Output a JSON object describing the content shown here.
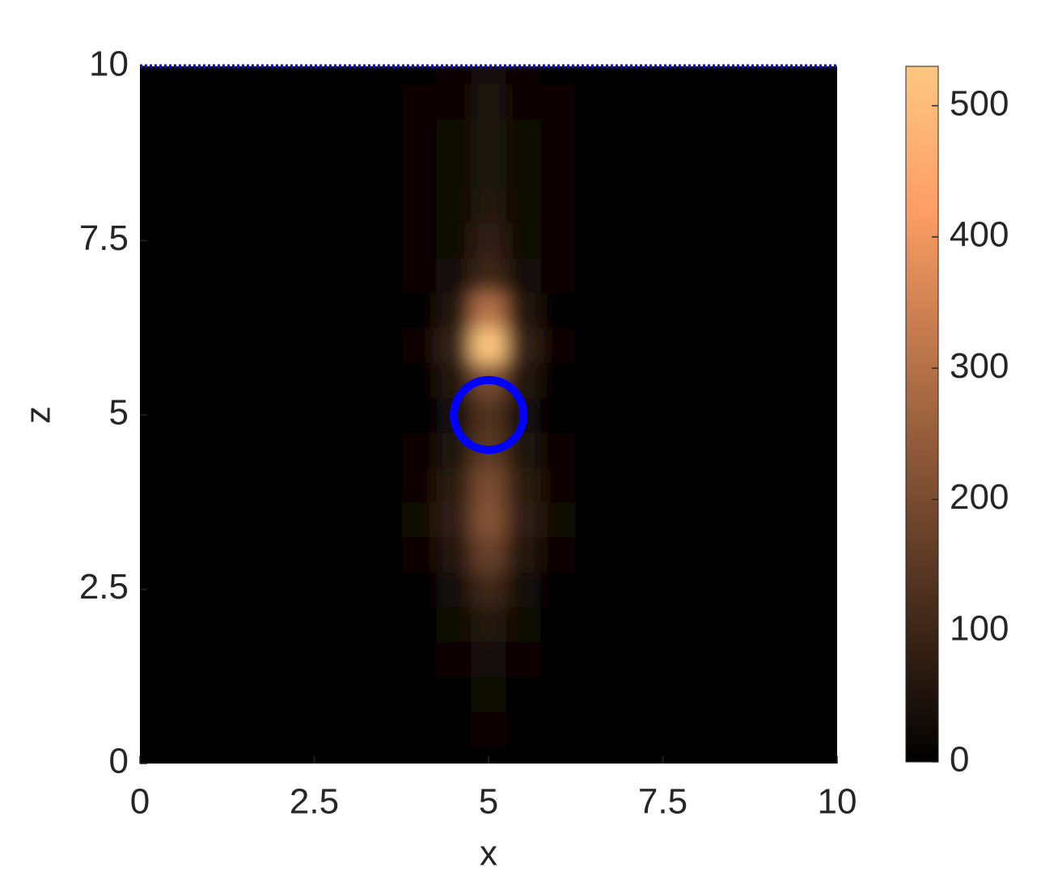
{
  "chart_data": {
    "type": "heatmap",
    "xlabel": "x",
    "ylabel": "z",
    "x": [
      0,
      0.5,
      1,
      1.5,
      2,
      2.5,
      3,
      3.5,
      4,
      4.5,
      5,
      5.5,
      6,
      6.5,
      7,
      7.5,
      8,
      8.5,
      9,
      9.5,
      10
    ],
    "z": [
      0,
      0.5,
      1,
      1.5,
      2,
      2.5,
      3,
      3.5,
      4,
      4.5,
      5,
      5.5,
      6,
      6.5,
      7,
      7.5,
      8,
      8.5,
      9,
      9.5,
      10
    ],
    "values": [
      [
        0,
        0,
        0,
        0,
        0,
        0,
        0,
        0,
        0,
        3,
        8,
        3,
        0,
        0,
        0,
        0,
        0,
        0,
        0,
        0,
        0
      ],
      [
        0,
        0,
        0,
        0,
        0,
        0,
        0,
        0,
        2,
        6,
        15,
        6,
        2,
        0,
        0,
        0,
        0,
        0,
        0,
        0,
        0
      ],
      [
        0,
        0,
        0,
        0,
        0,
        0,
        0,
        0,
        3,
        10,
        25,
        10,
        3,
        0,
        0,
        0,
        0,
        0,
        0,
        0,
        0
      ],
      [
        0,
        0,
        0,
        0,
        0,
        0,
        0,
        0,
        5,
        15,
        40,
        15,
        5,
        0,
        0,
        0,
        0,
        0,
        0,
        0,
        0
      ],
      [
        0,
        0,
        0,
        0,
        0,
        0,
        0,
        0,
        5,
        20,
        60,
        20,
        5,
        0,
        0,
        0,
        0,
        0,
        0,
        0,
        0
      ],
      [
        0,
        0,
        0,
        0,
        0,
        0,
        0,
        2,
        10,
        35,
        100,
        35,
        10,
        2,
        0,
        0,
        0,
        0,
        0,
        0,
        0
      ],
      [
        0,
        0,
        0,
        0,
        0,
        0,
        0,
        2,
        15,
        60,
        170,
        60,
        15,
        2,
        0,
        0,
        0,
        0,
        0,
        0,
        0
      ],
      [
        0,
        0,
        0,
        0,
        0,
        0,
        0,
        5,
        20,
        80,
        220,
        80,
        20,
        5,
        0,
        0,
        0,
        0,
        0,
        0,
        0
      ],
      [
        0,
        0,
        0,
        0,
        0,
        0,
        0,
        2,
        15,
        70,
        200,
        70,
        15,
        2,
        0,
        0,
        0,
        0,
        0,
        0,
        0
      ],
      [
        0,
        0,
        0,
        0,
        0,
        0,
        0,
        2,
        15,
        50,
        150,
        50,
        15,
        2,
        0,
        0,
        0,
        0,
        0,
        0,
        0
      ],
      [
        0,
        0,
        0,
        0,
        0,
        0,
        0,
        2,
        10,
        40,
        130,
        40,
        10,
        2,
        0,
        0,
        0,
        0,
        0,
        0,
        0
      ],
      [
        0,
        0,
        0,
        0,
        0,
        0,
        0,
        2,
        10,
        60,
        200,
        60,
        10,
        2,
        0,
        0,
        0,
        0,
        0,
        0,
        0
      ],
      [
        0,
        0,
        0,
        0,
        0,
        0,
        0,
        2,
        15,
        90,
        530,
        90,
        15,
        2,
        0,
        0,
        0,
        0,
        0,
        0,
        0
      ],
      [
        0,
        0,
        0,
        0,
        0,
        0,
        0,
        2,
        10,
        60,
        300,
        60,
        10,
        2,
        0,
        0,
        0,
        0,
        0,
        0,
        0
      ],
      [
        0,
        0,
        0,
        0,
        0,
        0,
        0,
        5,
        15,
        30,
        100,
        30,
        15,
        5,
        0,
        0,
        0,
        0,
        0,
        0,
        0
      ],
      [
        0,
        0,
        0,
        0,
        0,
        0,
        0,
        5,
        15,
        25,
        80,
        25,
        15,
        5,
        0,
        0,
        0,
        0,
        0,
        0,
        0
      ],
      [
        0,
        0,
        0,
        0,
        0,
        0,
        0,
        5,
        15,
        20,
        60,
        20,
        15,
        5,
        0,
        0,
        0,
        0,
        0,
        0,
        0
      ],
      [
        0,
        0,
        0,
        0,
        0,
        0,
        0,
        8,
        15,
        20,
        50,
        20,
        15,
        8,
        0,
        0,
        0,
        0,
        0,
        0,
        0
      ],
      [
        0,
        0,
        0,
        0,
        0,
        0,
        0,
        8,
        15,
        20,
        50,
        20,
        15,
        8,
        0,
        0,
        0,
        0,
        0,
        0,
        0
      ],
      [
        0,
        0,
        0,
        0,
        0,
        0,
        0,
        8,
        12,
        15,
        50,
        15,
        12,
        8,
        0,
        0,
        0,
        0,
        0,
        0,
        0
      ],
      [
        0,
        0,
        0,
        0,
        0,
        0,
        0,
        5,
        10,
        12,
        30,
        12,
        10,
        5,
        0,
        0,
        0,
        0,
        0,
        0,
        0
      ]
    ],
    "colormap": "copper",
    "xlim": [
      0,
      10
    ],
    "ylim": [
      0,
      10
    ],
    "xticks": [
      0,
      2.5,
      5,
      7.5,
      10
    ],
    "yticks": [
      0,
      2.5,
      5,
      7.5,
      10
    ],
    "clim": [
      0,
      530
    ],
    "cticks": [
      0,
      100,
      200,
      300,
      400,
      500
    ],
    "scatterer": {
      "x": 5,
      "z": 5,
      "radius": 0.5,
      "color": "#0000ff"
    },
    "source_line": {
      "z": 10,
      "color": "#0000ff"
    }
  }
}
